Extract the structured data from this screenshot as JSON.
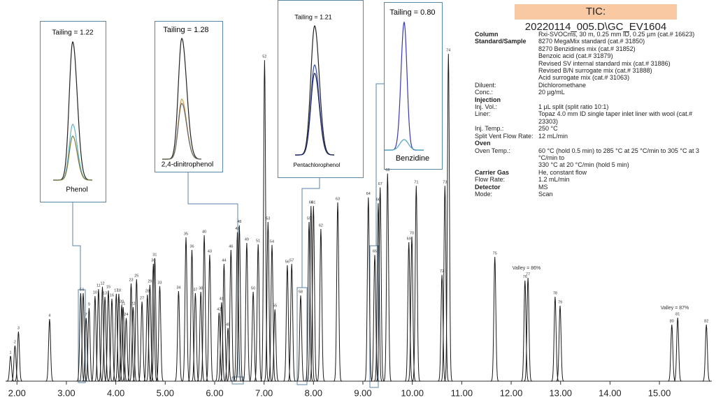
{
  "chart_data": {
    "type": "chromatogram",
    "title": "TIC: 20220114_005.D\\GC_EV1604",
    "xlim": [
      1.77,
      16.06
    ],
    "ylim": [
      0,
      100
    ],
    "xticks": [
      {
        "value": 2,
        "label": "2.00"
      },
      {
        "value": 3,
        "label": "3.00"
      },
      {
        "value": 4,
        "label": "4.00"
      },
      {
        "value": 5,
        "label": "5.00"
      },
      {
        "value": 6,
        "label": "6.00"
      },
      {
        "value": 7,
        "label": "7.00"
      },
      {
        "value": 8,
        "label": "8.00"
      },
      {
        "value": 9,
        "label": "9.00"
      },
      {
        "value": 10,
        "label": "10.00"
      },
      {
        "value": 11,
        "label": "11.00"
      },
      {
        "value": 12,
        "label": "12.00"
      },
      {
        "value": 13,
        "label": "13.00"
      },
      {
        "value": 14,
        "label": "14.00"
      },
      {
        "value": 15,
        "label": "15.00"
      }
    ],
    "color": "#1a1a1a",
    "x": [
      1.87,
      1.96,
      2.03,
      2.66,
      3.29,
      3.34,
      3.4,
      3.46,
      3.58,
      3.65,
      3.73,
      3.78,
      3.85,
      3.92,
      4.01,
      4.06,
      4.12,
      4.15,
      4.21,
      4.31,
      4.35,
      4.42,
      4.53,
      4.64,
      4.69,
      4.76,
      4.79,
      4.89,
      5.27,
      5.42,
      5.54,
      5.61,
      5.72,
      5.79,
      5.9,
      6.09,
      6.14,
      6.19,
      6.27,
      6.33,
      6.46,
      6.5,
      6.65,
      6.78,
      6.88,
      7.01,
      7.08,
      7.16,
      7.22,
      7.47,
      7.56,
      7.74,
      7.91,
      7.95,
      8.0,
      8.15,
      8.49,
      9.11,
      9.24,
      9.31,
      9.35,
      9.5,
      9.93,
      9.99,
      10.08,
      10.6,
      10.66,
      10.73,
      11.67,
      12.28,
      12.34,
      12.89,
      12.99,
      15.25,
      15.37,
      15.95
    ],
    "values": [
      7.6,
      10.7,
      14.9,
      18.7,
      26.5,
      26.5,
      19,
      22,
      25.6,
      27.7,
      28.4,
      25.4,
      27.3,
      24.8,
      26.3,
      26.3,
      22.9,
      22.3,
      19,
      29.4,
      22.3,
      30.7,
      23.9,
      26,
      29,
      35.3,
      37,
      28.6,
      27.1,
      43.3,
      39.5,
      26.5,
      26.9,
      43.9,
      38,
      20.6,
      23.7,
      35.3,
      16,
      39.5,
      44.8,
      46.9,
      41.6,
      26.9,
      41.2,
      96.6,
      47.9,
      41,
      21.6,
      34.9,
      35.3,
      25.8,
      47.9,
      52.7,
      52.7,
      45.8,
      53.8,
      55.3,
      38,
      53.6,
      58.3,
      62.5,
      41.8,
      43.5,
      58.8,
      32,
      58.8,
      98.5,
      37.4,
      30.3,
      31.1,
      25.4,
      22.7,
      17,
      19.1,
      17
    ],
    "peak_labels": [
      "1",
      "2",
      "3",
      "4",
      "5",
      "6",
      "7",
      "9",
      "10",
      "11",
      "12",
      "13",
      "15",
      "16",
      "17",
      "18",
      "20",
      "21",
      "24",
      "23",
      "22",
      "25",
      "27",
      "28",
      "29",
      "30",
      "31",
      "33",
      "34",
      "35",
      "36",
      "37",
      "38",
      "40",
      "43",
      "42",
      "41",
      "44",
      "45",
      "46",
      "47",
      "48",
      "49",
      "50",
      "51",
      "52",
      "53",
      "54",
      "55",
      "56",
      "57",
      "58",
      "59",
      "60",
      "61",
      "62",
      "63",
      "64",
      "65",
      "66",
      "67",
      "68",
      "69",
      "70",
      "71",
      "72",
      "73",
      "74",
      "75",
      "76",
      "77",
      "78",
      "79",
      "80",
      "81",
      "82"
    ],
    "annotations": [
      {
        "text": "Valley = 86%",
        "x": 12.31,
        "y": 34
      },
      {
        "text": "Valley = 87%",
        "x": 15.31,
        "y": 22
      }
    ]
  },
  "insets": [
    {
      "tailing": "Tailing =  1.22",
      "compound": "Phenol"
    },
    {
      "tailing": "Tailing =  1.28",
      "compound": "2,4-dinitrophenol"
    },
    {
      "tailing": "Tailing =  1.21",
      "compound": "Pentachlorophenol"
    },
    {
      "tailing": "Tailing =  0.80",
      "compound": "Benzidine"
    }
  ],
  "method": {
    "rows": [
      {
        "label": "Column",
        "bold": true,
        "values": [
          "Rxi-SVOCms, 30 m, 0.25 mm ID, 0.25 µm (cat.# 16623)"
        ]
      },
      {
        "label": "Standard/Sample",
        "bold": true,
        "values": [
          "8270 MegaMix standard (cat.# 31850)",
          "8270 Benzidines mix (cat.# 31852)",
          "Benzoic acid (cat.# 31879)",
          "Revised SV internal standard mix (cat.# 31886)",
          "Revised B/N surrogate mix (cat.# 31888)",
          "Acid surrogate mix (cat.# 31063)"
        ]
      },
      {
        "label": "Diluent:",
        "bold": false,
        "values": [
          "Dichloromethane"
        ]
      },
      {
        "label": "Conc.:",
        "bold": false,
        "values": [
          "20 µg/mL"
        ]
      },
      {
        "label": "Injection",
        "bold": true,
        "values": []
      },
      {
        "label": "Inj. Vol.:",
        "bold": false,
        "values": [
          "1 µL split (split ratio 10:1)"
        ]
      },
      {
        "label": "Liner:",
        "bold": false,
        "values": [
          "Topaz 4.0 mm ID single taper inlet liner with wool (cat.# 23303)"
        ]
      },
      {
        "label": "Inj. Temp.:",
        "bold": false,
        "values": [
          "250 °C"
        ]
      },
      {
        "label": "Split Vent Flow Rate:",
        "bold": false,
        "values": [
          "12 mL/min"
        ]
      },
      {
        "label": "Oven",
        "bold": true,
        "values": []
      },
      {
        "label": "Oven Temp.:",
        "bold": false,
        "values": [
          "60 °C (hold 0.5 min) to 285 °C at 25 °C/min to 305 °C at 3 °C/min to",
          "330 °C at 20 °C/min (hold 5 min)"
        ]
      },
      {
        "label": "Carrier Gas",
        "bold": true,
        "values": [
          "He, constant flow"
        ]
      },
      {
        "label": "Flow Rate:",
        "bold": false,
        "values": [
          "1.2 mL/min"
        ]
      },
      {
        "label": "Detector",
        "bold": true,
        "values": [
          "MS"
        ]
      },
      {
        "label": "Mode:",
        "bold": false,
        "values": [
          "Scan"
        ]
      }
    ]
  }
}
